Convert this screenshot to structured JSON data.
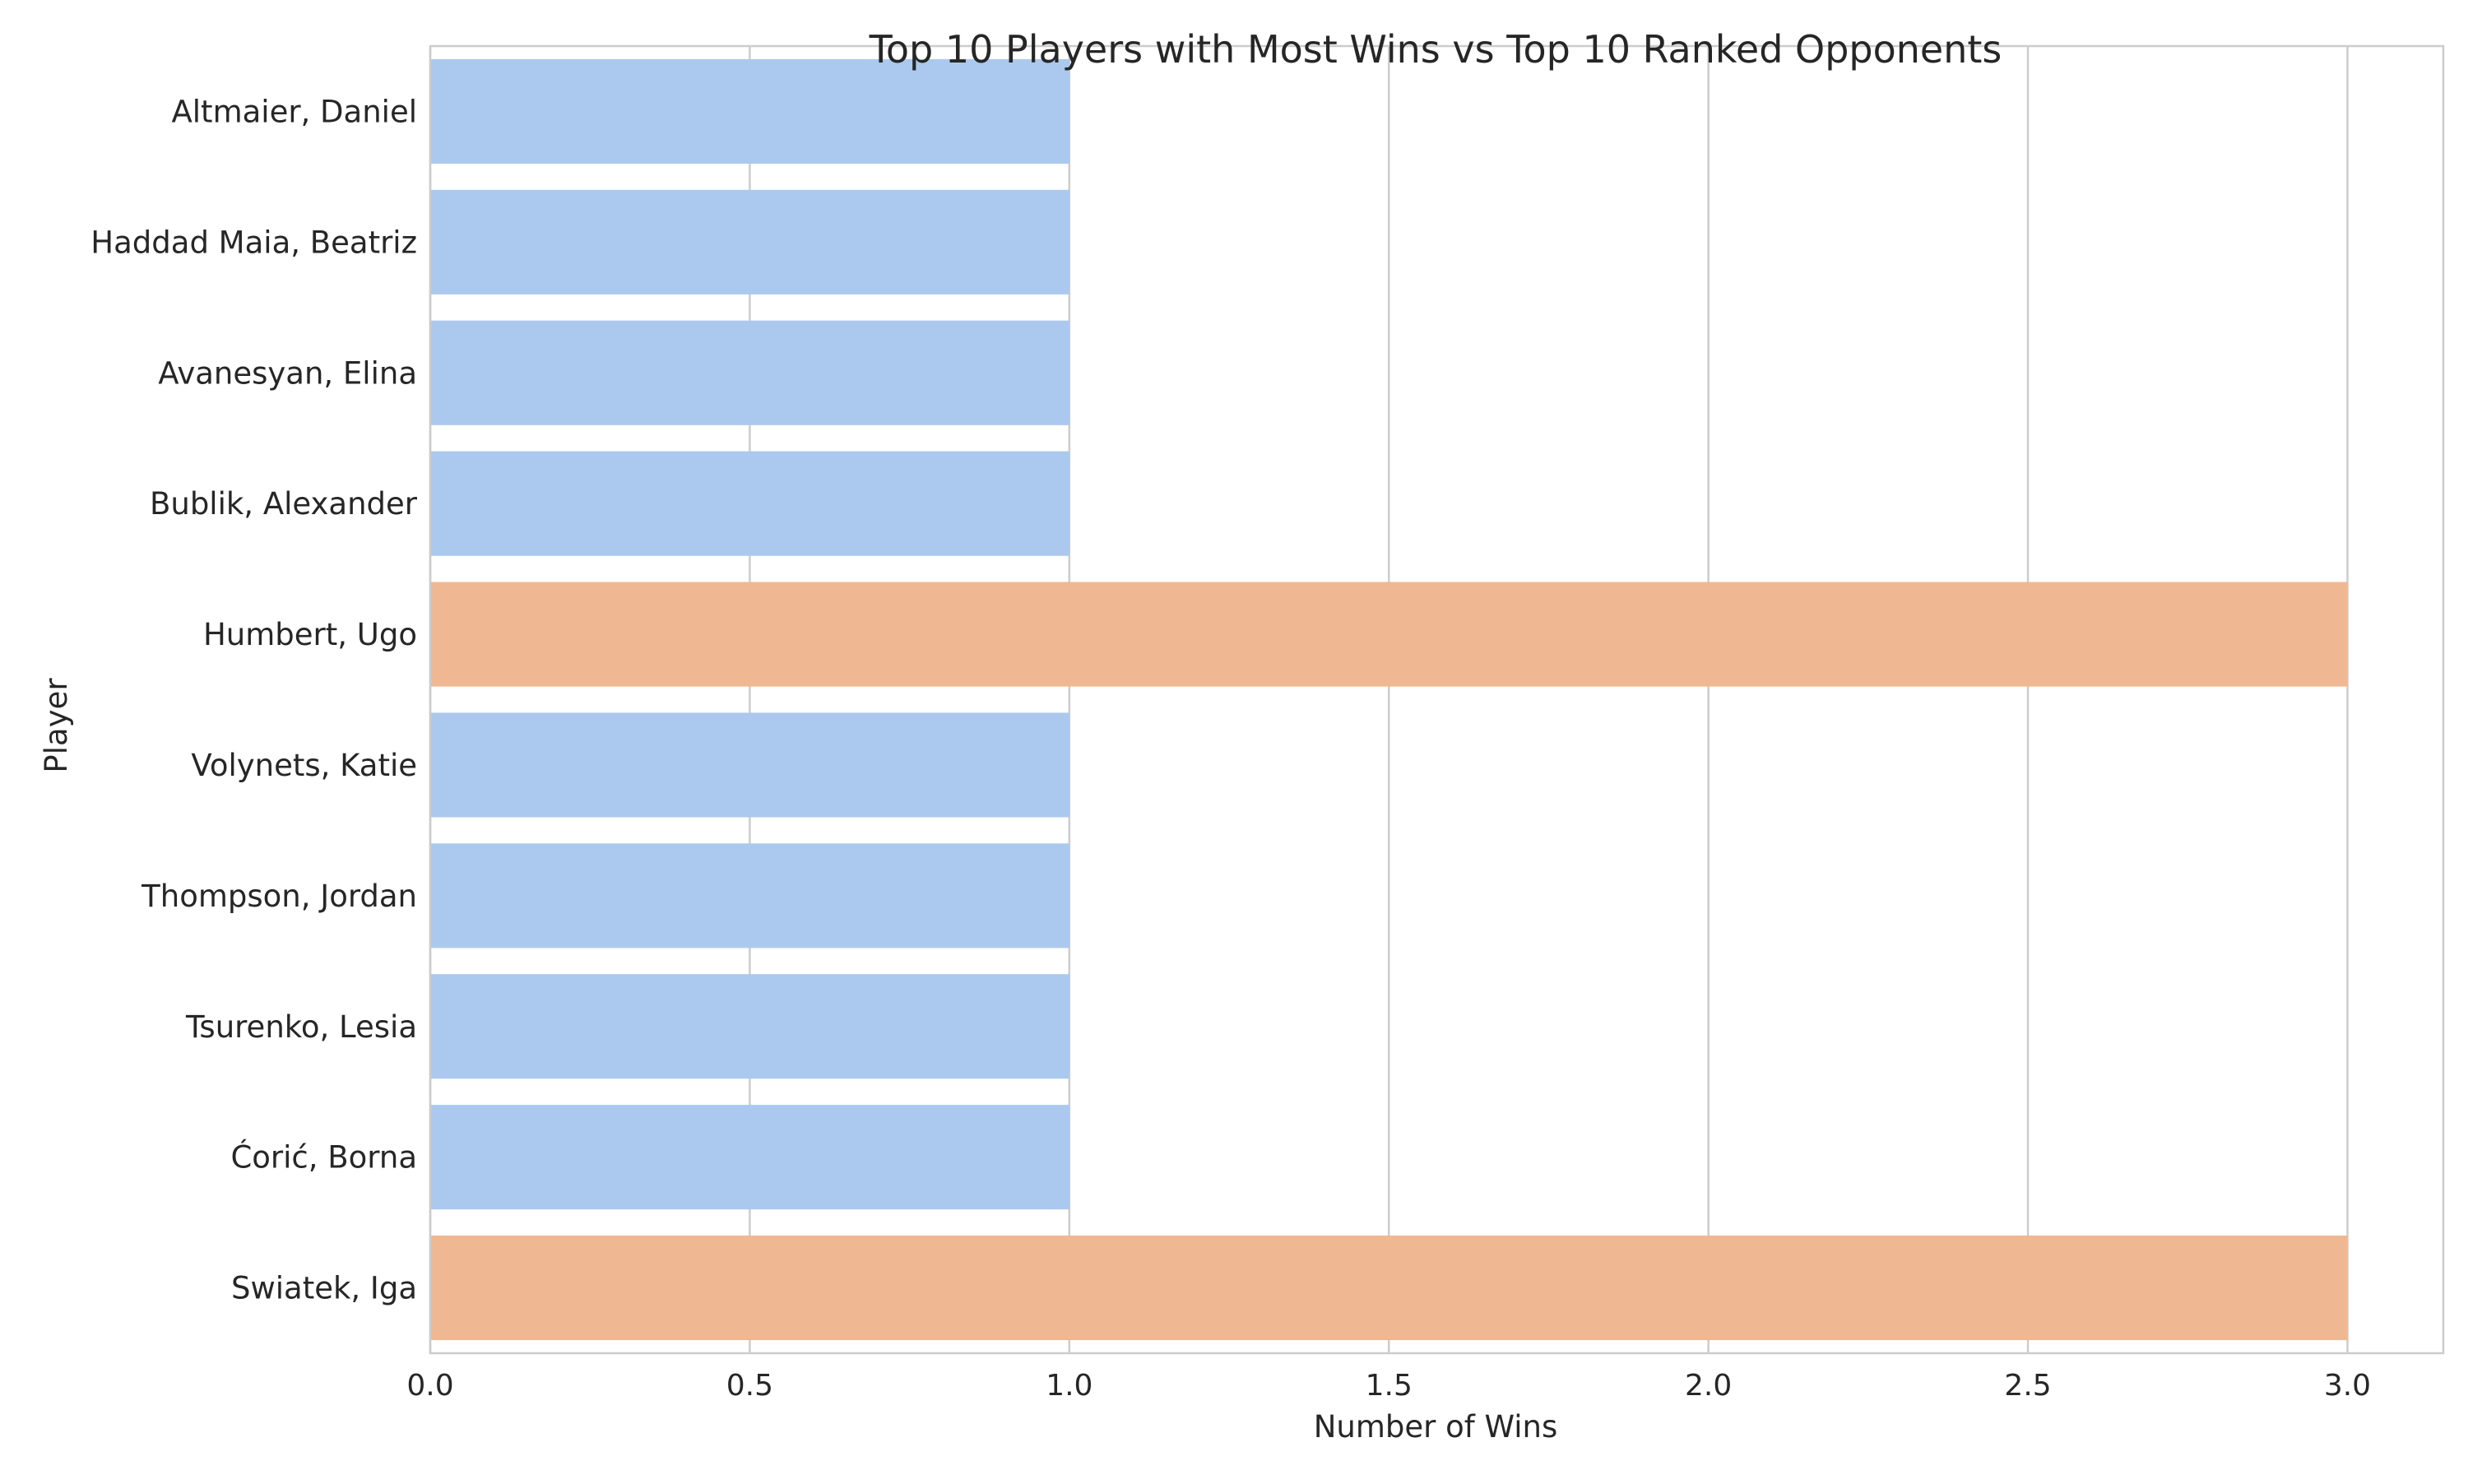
{
  "chart_data": {
    "type": "bar",
    "orientation": "horizontal",
    "title": "Top 10 Players with Most Wins vs Top 10 Ranked Opponents",
    "xlabel": "Number of Wins",
    "ylabel": "Player",
    "categories": [
      "Altmaier, Daniel",
      "Haddad Maia, Beatriz",
      "Avanesyan, Elina",
      "Bublik, Alexander",
      "Humbert, Ugo",
      "Volynets, Katie",
      "Thompson, Jordan",
      "Tsurenko, Lesia",
      "Ćorić, Borna",
      "Swiatek, Iga"
    ],
    "values": [
      1,
      1,
      1,
      1,
      3,
      1,
      1,
      1,
      1,
      3
    ],
    "bar_colors": [
      "#abc9ee",
      "#abc9ee",
      "#abc9ee",
      "#abc9ee",
      "#f0b892",
      "#abc9ee",
      "#abc9ee",
      "#abc9ee",
      "#abc9ee",
      "#f0b892"
    ],
    "xlim": [
      0,
      3.15
    ],
    "xticks": [
      0.0,
      0.5,
      1.0,
      1.5,
      2.0,
      2.5,
      3.0
    ],
    "xtick_labels": [
      "0.0",
      "0.5",
      "1.0",
      "1.5",
      "2.0",
      "2.5",
      "3.0"
    ],
    "grid": true,
    "grid_axis": "x",
    "legend": "none",
    "colors": {
      "bar_default": "#abc9ee",
      "bar_highlight": "#f0b892",
      "grid": "#cccccc",
      "axes_edge": "#cccccc",
      "text": "#262626"
    }
  }
}
